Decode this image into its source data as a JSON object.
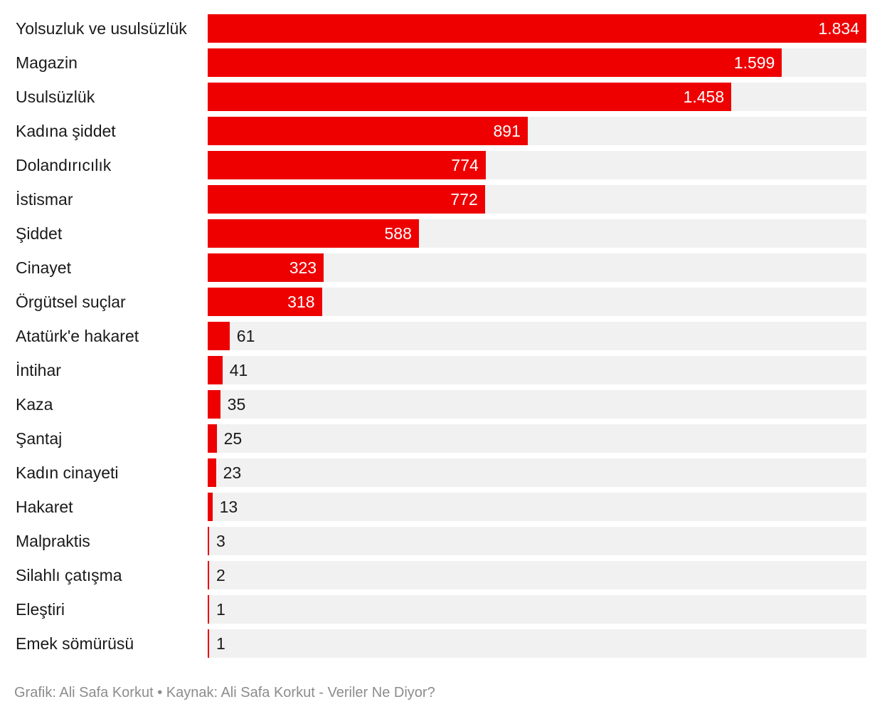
{
  "chart_data": {
    "type": "bar",
    "orientation": "horizontal",
    "categories": [
      "Yolsuzluk ve usulsüzlük",
      "Magazin",
      "Usulsüzlük",
      "Kadına şiddet",
      "Dolandırıcılık",
      "İstismar",
      "Şiddet",
      "Cinayet",
      "Örgütsel suçlar",
      "Atatürk'e hakaret",
      "İntihar",
      "Kaza",
      "Şantaj",
      "Kadın cinayeti",
      "Hakaret",
      "Malpraktis",
      "Silahlı çatışma",
      "Eleştiri",
      "Emek sömürüsü"
    ],
    "values": [
      1834,
      1599,
      1458,
      891,
      774,
      772,
      588,
      323,
      318,
      61,
      41,
      35,
      25,
      23,
      13,
      3,
      2,
      1,
      1
    ],
    "value_labels": [
      "1.834",
      "1.599",
      "1.458",
      "891",
      "774",
      "772",
      "588",
      "323",
      "318",
      "61",
      "41",
      "35",
      "25",
      "23",
      "13",
      "3",
      "2",
      "1",
      "1"
    ],
    "xlim": [
      0,
      1834
    ],
    "title": "",
    "xlabel": "",
    "ylabel": "",
    "bar_color": "#ee0000",
    "track_color": "#f1f1f1"
  },
  "footer": {
    "text": "Grafik: Ali Safa Korkut • Kaynak: Ali Safa Korkut - Veriler Ne Diyor?"
  }
}
